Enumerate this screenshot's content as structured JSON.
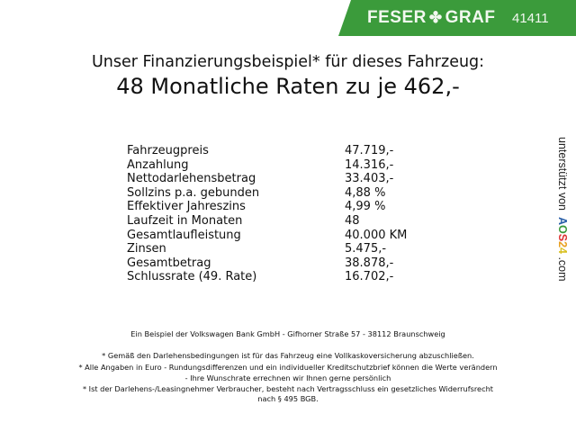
{
  "header": {
    "brand": "FESER",
    "brand2": "GRAF",
    "dealer_number": "41411",
    "brand_color": "#3b9b3b"
  },
  "title": {
    "line1": "Unser Finanzierungsbeispiel* für dieses Fahrzeug:",
    "line2": "48 Monatliche Raten zu je 462,-"
  },
  "table": [
    {
      "label": "Fahrzeugpreis",
      "value": "47.719,-"
    },
    {
      "label": "Anzahlung",
      "value": "14.316,-"
    },
    {
      "label": "Nettodarlehensbetrag",
      "value": "33.403,-"
    },
    {
      "label": "Sollzins p.a. gebunden",
      "value": "4,88 %"
    },
    {
      "label": "Effektiver Jahreszins",
      "value": "4,99 %"
    },
    {
      "label": "Laufzeit in Monaten",
      "value": "48"
    },
    {
      "label": "Gesamtlaufleistung",
      "value": "40.000 KM"
    },
    {
      "label": "Zinsen",
      "value": "5.475,-"
    },
    {
      "label": "Gesamtbetrag",
      "value": "38.878,-"
    },
    {
      "label": "Schlussrate (49. Rate)",
      "value": "16.702,-"
    }
  ],
  "side": {
    "text": "unterstützt von",
    "logo": "AOS24",
    "suffix": ".com"
  },
  "footer": {
    "bank": "Ein Beispiel der Volkswagen Bank GmbH - Gifhorner Straße 57 - 38112 Braunschweig",
    "note1": "* Gemäß den Darlehensbedingungen ist für das Fahrzeug eine Vollkaskoversicherung abzuschließen.",
    "note2a": "* Alle Angaben in Euro - Rundungsdifferenzen und ein individueller Kreditschutzbrief können die Werte verändern",
    "note2b": "- Ihre Wunschrate errechnen wir Ihnen gerne persönlich",
    "note3a": "* Ist der Darlehens-/Leasingnehmer Verbraucher, besteht nach Vertragsschluss ein gesetzliches Widerrufsrecht",
    "note3b": "nach § 495 BGB."
  }
}
